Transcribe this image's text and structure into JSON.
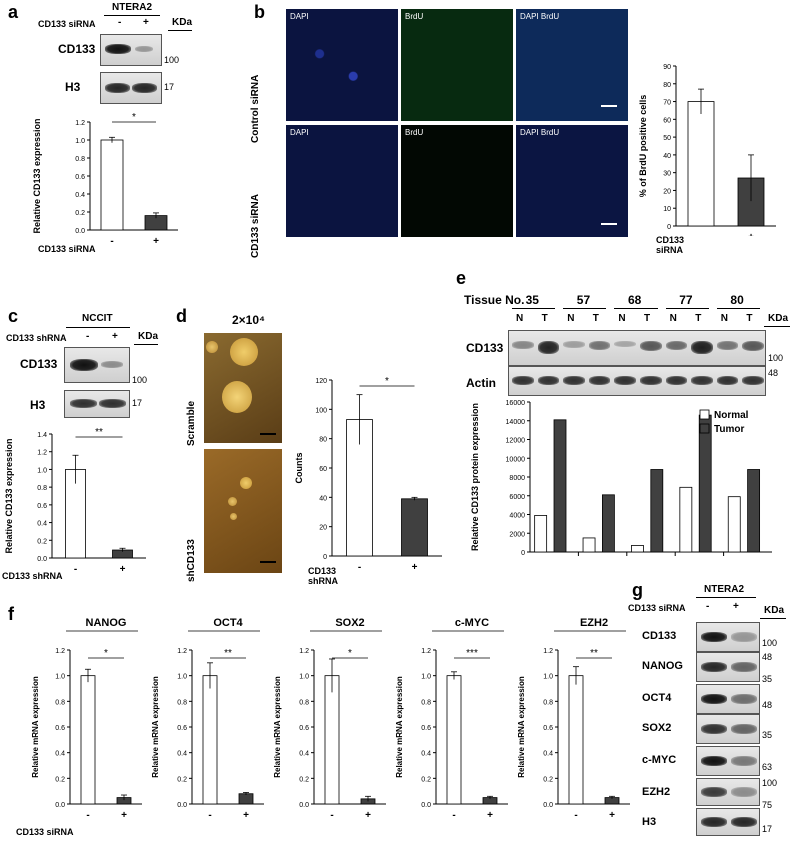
{
  "panels": {
    "a": {
      "letter": "a",
      "cell_line": "NTERA2",
      "treatment": "CD133 siRNA",
      "lanes": [
        "-",
        "+"
      ],
      "kda": "KDa",
      "blots": [
        {
          "name": "CD133",
          "kda": "100"
        },
        {
          "name": "H3",
          "kda": "17"
        }
      ],
      "chart": {
        "ylabel": "Relative CD133 expression",
        "sig": "*",
        "xlabel": "CD133 siRNA"
      }
    },
    "b": {
      "letter": "b",
      "rows": [
        "Control siRNA",
        "CD133 siRNA"
      ],
      "channels": [
        "DAPI",
        "BrdU",
        "DAPI  BrdU"
      ],
      "chart": {
        "ylabel": "% of BrdU positive cells",
        "xlabel": "CD133 siRNA"
      }
    },
    "c": {
      "letter": "c",
      "cell_line": "NCCIT",
      "treatment": "CD133 shRNA",
      "lanes": [
        "-",
        "+"
      ],
      "kda": "KDa",
      "blots": [
        {
          "name": "CD133",
          "kda": "100"
        },
        {
          "name": "H3",
          "kda": "17"
        }
      ],
      "chart": {
        "ylabel": "Relative CD133 expression",
        "sig": "**",
        "xlabel": "CD133 shRNA"
      }
    },
    "d": {
      "letter": "d",
      "title": "2×10⁴",
      "rows": [
        "Scramble",
        "shCD133"
      ],
      "chart": {
        "ylabel": "Counts",
        "sig": "*",
        "xlabel": "CD133 shRNA"
      }
    },
    "e": {
      "letter": "e",
      "tissue_label": "Tissue No.",
      "tissues": [
        "35",
        "57",
        "68",
        "77",
        "80"
      ],
      "lane_labels": [
        "N",
        "T"
      ],
      "kda": "KDa",
      "blots": [
        {
          "name": "CD133",
          "kda": "100"
        },
        {
          "name": "Actin",
          "kda": "48"
        }
      ],
      "chart": {
        "ylabel": "Relative CD133  protein expression"
      }
    },
    "f": {
      "letter": "f",
      "xlabel": "CD133 siRNA",
      "ylabel": "Relative mRNA expression"
    },
    "g": {
      "letter": "g",
      "cell_line": "NTERA2",
      "treatment": "CD133 siRNA",
      "lanes": [
        "-",
        "+"
      ],
      "kda": "KDa",
      "blots": [
        {
          "name": "CD133",
          "kda": "100"
        },
        {
          "name": "NANOG",
          "kda": "48",
          "kda2": "35"
        },
        {
          "name": "OCT4",
          "kda": "48"
        },
        {
          "name": "SOX2",
          "kda": "35"
        },
        {
          "name": "c-MYC",
          "kda": "63"
        },
        {
          "name": "EZH2",
          "kda": "100",
          "kda2": "75"
        },
        {
          "name": "H3",
          "kda": "17"
        }
      ]
    }
  },
  "chart_data": [
    {
      "id": "a",
      "type": "bar",
      "categories": [
        "-",
        "+"
      ],
      "values": [
        1.0,
        0.16
      ],
      "errors": [
        0.03,
        0.03
      ],
      "ylim": [
        0,
        1.2
      ],
      "yticks": [
        "0.0",
        "0.2",
        "0.4",
        "0.6",
        "0.8",
        "1.0",
        "1.2"
      ],
      "fills": [
        "#ffffff",
        "#404040"
      ]
    },
    {
      "id": "b",
      "type": "bar",
      "categories": [
        "-",
        "+"
      ],
      "values": [
        70,
        27
      ],
      "errors": [
        7,
        13
      ],
      "ylim": [
        0,
        90
      ],
      "yticks": [
        "0",
        "10",
        "20",
        "30",
        "40",
        "50",
        "60",
        "70",
        "80",
        "90"
      ],
      "fills": [
        "#ffffff",
        "#404040"
      ]
    },
    {
      "id": "c",
      "type": "bar",
      "categories": [
        "-",
        "+"
      ],
      "values": [
        1.0,
        0.09
      ],
      "errors": [
        0.16,
        0.02
      ],
      "ylim": [
        0,
        1.4
      ],
      "yticks": [
        "0.0",
        "0.2",
        "0.4",
        "0.6",
        "0.8",
        "1.0",
        "1.2",
        "1.4"
      ],
      "fills": [
        "#ffffff",
        "#404040"
      ]
    },
    {
      "id": "d",
      "type": "bar",
      "categories": [
        "-",
        "+"
      ],
      "values": [
        93,
        39
      ],
      "errors": [
        17,
        1
      ],
      "ylim": [
        0,
        120
      ],
      "yticks": [
        "0",
        "20",
        "40",
        "60",
        "80",
        "100",
        "120"
      ],
      "fills": [
        "#ffffff",
        "#404040"
      ]
    },
    {
      "id": "e",
      "type": "bar",
      "categories": [
        "35",
        "57",
        "68",
        "77",
        "80"
      ],
      "series": [
        {
          "name": "Normal",
          "values": [
            3900,
            1500,
            700,
            6900,
            5900
          ],
          "fill": "#ffffff"
        },
        {
          "name": "Tumor",
          "values": [
            14100,
            6100,
            8800,
            14600,
            8800
          ],
          "fill": "#404040"
        }
      ],
      "ylim": [
        0,
        16000
      ],
      "yticks": [
        "0",
        "2000",
        "4000",
        "6000",
        "8000",
        "10000",
        "12000",
        "14000",
        "16000"
      ],
      "legend": "top-right"
    },
    {
      "id": "f1",
      "type": "bar",
      "title": "NANOG",
      "categories": [
        "-",
        "+"
      ],
      "values": [
        1.0,
        0.05
      ],
      "errors": [
        0.05,
        0.02
      ],
      "ylim": [
        0,
        1.2
      ],
      "yticks": [
        "0.0",
        "0.2",
        "0.4",
        "0.6",
        "0.8",
        "1.0",
        "1.2"
      ],
      "sig": "*",
      "fills": [
        "#ffffff",
        "#404040"
      ]
    },
    {
      "id": "f2",
      "type": "bar",
      "title": "OCT4",
      "categories": [
        "-",
        "+"
      ],
      "values": [
        1.0,
        0.08
      ],
      "errors": [
        0.1,
        0.01
      ],
      "ylim": [
        0,
        1.2
      ],
      "yticks": [
        "0.0",
        "0.2",
        "0.4",
        "0.6",
        "0.8",
        "1.0",
        "1.2"
      ],
      "sig": "**",
      "fills": [
        "#ffffff",
        "#404040"
      ]
    },
    {
      "id": "f3",
      "type": "bar",
      "title": "SOX2",
      "categories": [
        "-",
        "+"
      ],
      "values": [
        1.0,
        0.04
      ],
      "errors": [
        0.13,
        0.02
      ],
      "ylim": [
        0,
        1.2
      ],
      "yticks": [
        "0.0",
        "0.2",
        "0.4",
        "0.6",
        "0.8",
        "1.0",
        "1.2"
      ],
      "sig": "*",
      "fills": [
        "#ffffff",
        "#404040"
      ]
    },
    {
      "id": "f4",
      "type": "bar",
      "title": "c-MYC",
      "categories": [
        "-",
        "+"
      ],
      "values": [
        1.0,
        0.05
      ],
      "errors": [
        0.03,
        0.01
      ],
      "ylim": [
        0,
        1.2
      ],
      "yticks": [
        "0.0",
        "0.2",
        "0.4",
        "0.6",
        "0.8",
        "1.0",
        "1.2"
      ],
      "sig": "***",
      "fills": [
        "#ffffff",
        "#404040"
      ]
    },
    {
      "id": "f5",
      "type": "bar",
      "title": "EZH2",
      "categories": [
        "-",
        "+"
      ],
      "values": [
        1.0,
        0.05
      ],
      "errors": [
        0.07,
        0.01
      ],
      "ylim": [
        0,
        1.2
      ],
      "yticks": [
        "0.0",
        "0.2",
        "0.4",
        "0.6",
        "0.8",
        "1.0",
        "1.2"
      ],
      "sig": "**",
      "fills": [
        "#ffffff",
        "#404040"
      ]
    }
  ]
}
